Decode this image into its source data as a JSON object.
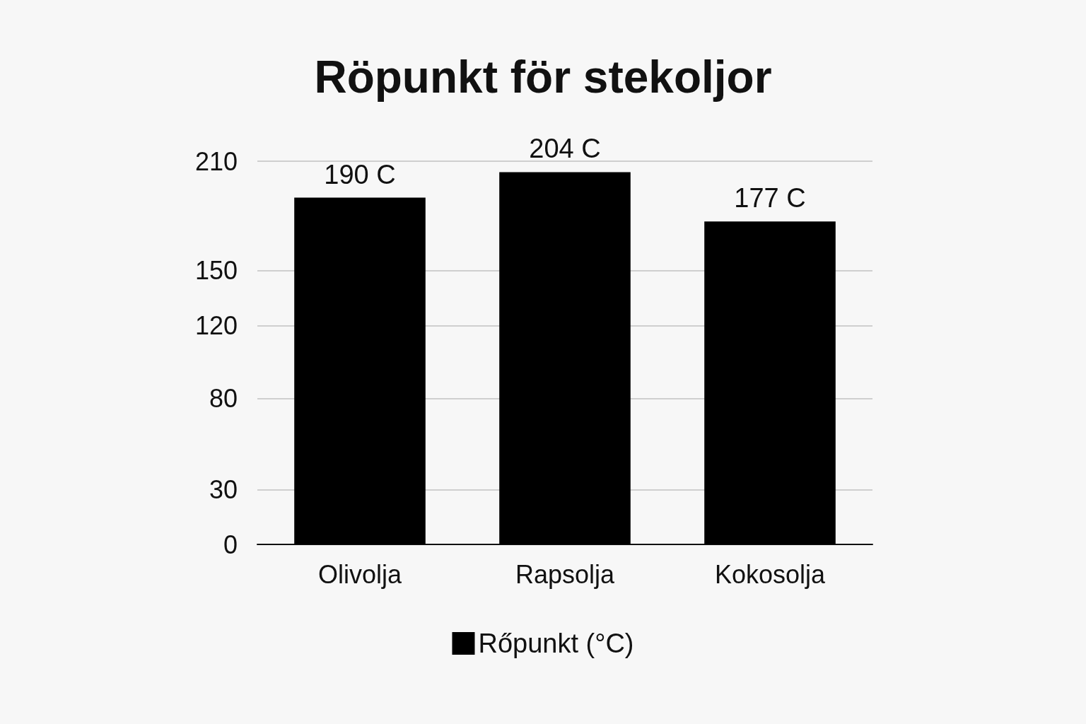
{
  "chart_data": {
    "type": "bar",
    "title": "Röpunkt för stekoljor",
    "categories": [
      "Olivolja",
      "Rapsolja",
      "Kokosolja"
    ],
    "series": [
      {
        "name": "Rőpunkt (°C)",
        "color": "#000000",
        "values": [
          190,
          204,
          177
        ],
        "value_labels": [
          "190 C",
          "204 C",
          "177 C"
        ]
      }
    ],
    "ylim": [
      0,
      210
    ],
    "yticks": [
      0,
      30,
      80,
      120,
      150,
      210
    ],
    "grid": "y",
    "legend": "bottom"
  }
}
